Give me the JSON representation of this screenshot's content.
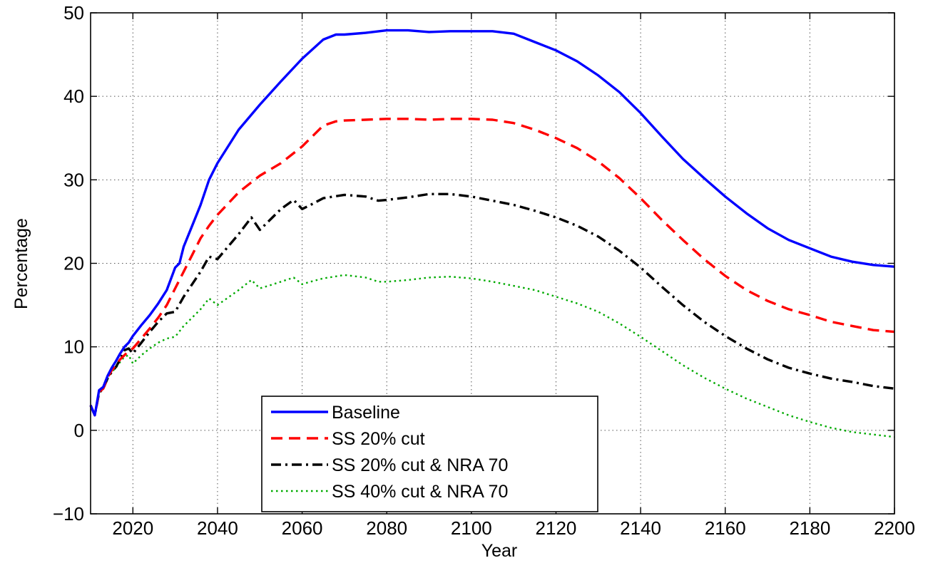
{
  "chart_data": {
    "type": "line",
    "title": "",
    "xlabel": "Year",
    "ylabel": "Percentage",
    "xlim": [
      2010,
      2200
    ],
    "ylim": [
      -10,
      50
    ],
    "xticks": [
      2020,
      2040,
      2060,
      2080,
      2100,
      2120,
      2140,
      2160,
      2180,
      2200
    ],
    "xtick_labels": [
      "2020",
      "2040",
      "2060",
      "2080",
      "2100",
      "2120",
      "2140",
      "2160",
      "2180",
      "2200"
    ],
    "yticks": [
      -10,
      0,
      10,
      20,
      30,
      40,
      50
    ],
    "ytick_labels": [
      "−10",
      "0",
      "10",
      "20",
      "30",
      "40",
      "50"
    ],
    "grid": true,
    "legend_position": "bottom-center",
    "series": [
      {
        "name": "Baseline",
        "color": "#0000ff",
        "dash": "solid",
        "points": [
          [
            2010,
            3
          ],
          [
            2011,
            1.8
          ],
          [
            2012,
            4.8
          ],
          [
            2013,
            5.2
          ],
          [
            2014,
            6.5
          ],
          [
            2015,
            7.5
          ],
          [
            2016,
            8.3
          ],
          [
            2017,
            9.2
          ],
          [
            2018,
            10
          ],
          [
            2019,
            10.5
          ],
          [
            2020,
            11.3
          ],
          [
            2022,
            12.6
          ],
          [
            2024,
            13.8
          ],
          [
            2026,
            15.2
          ],
          [
            2028,
            16.8
          ],
          [
            2030,
            19.5
          ],
          [
            2031,
            20
          ],
          [
            2032,
            22
          ],
          [
            2034,
            24.5
          ],
          [
            2036,
            27
          ],
          [
            2038,
            30
          ],
          [
            2040,
            32
          ],
          [
            2045,
            36
          ],
          [
            2050,
            39
          ],
          [
            2055,
            41.8
          ],
          [
            2060,
            44.5
          ],
          [
            2065,
            46.8
          ],
          [
            2068,
            47.4
          ],
          [
            2070,
            47.4
          ],
          [
            2075,
            47.6
          ],
          [
            2080,
            47.9
          ],
          [
            2085,
            47.9
          ],
          [
            2090,
            47.7
          ],
          [
            2095,
            47.8
          ],
          [
            2100,
            47.8
          ],
          [
            2105,
            47.8
          ],
          [
            2110,
            47.5
          ],
          [
            2115,
            46.5
          ],
          [
            2120,
            45.5
          ],
          [
            2125,
            44.2
          ],
          [
            2130,
            42.5
          ],
          [
            2135,
            40.5
          ],
          [
            2140,
            38
          ],
          [
            2145,
            35.2
          ],
          [
            2150,
            32.5
          ],
          [
            2155,
            30.2
          ],
          [
            2160,
            28
          ],
          [
            2165,
            26
          ],
          [
            2170,
            24.2
          ],
          [
            2175,
            22.8
          ],
          [
            2180,
            21.8
          ],
          [
            2185,
            20.8
          ],
          [
            2190,
            20.2
          ],
          [
            2195,
            19.8
          ],
          [
            2200,
            19.6
          ]
        ]
      },
      {
        "name": "SS 20% cut",
        "color": "#ff0000",
        "dash": "dashed",
        "points": [
          [
            2010,
            3
          ],
          [
            2011,
            1.8
          ],
          [
            2012,
            4.6
          ],
          [
            2013,
            5
          ],
          [
            2014,
            6.3
          ],
          [
            2015,
            7.2
          ],
          [
            2016,
            7.8
          ],
          [
            2017,
            8.5
          ],
          [
            2018,
            9
          ],
          [
            2019,
            9.5
          ],
          [
            2020,
            9.8
          ],
          [
            2022,
            11
          ],
          [
            2024,
            12.2
          ],
          [
            2026,
            13.5
          ],
          [
            2028,
            15
          ],
          [
            2030,
            17
          ],
          [
            2032,
            19
          ],
          [
            2034,
            21
          ],
          [
            2036,
            23
          ],
          [
            2038,
            24.5
          ],
          [
            2040,
            25.8
          ],
          [
            2045,
            28.5
          ],
          [
            2050,
            30.5
          ],
          [
            2055,
            32
          ],
          [
            2060,
            34
          ],
          [
            2065,
            36.5
          ],
          [
            2068,
            37
          ],
          [
            2070,
            37.1
          ],
          [
            2075,
            37.2
          ],
          [
            2080,
            37.3
          ],
          [
            2085,
            37.3
          ],
          [
            2090,
            37.2
          ],
          [
            2095,
            37.3
          ],
          [
            2100,
            37.3
          ],
          [
            2105,
            37.2
          ],
          [
            2110,
            36.8
          ],
          [
            2115,
            36
          ],
          [
            2120,
            35
          ],
          [
            2125,
            33.8
          ],
          [
            2130,
            32.2
          ],
          [
            2135,
            30.2
          ],
          [
            2140,
            27.8
          ],
          [
            2145,
            25.2
          ],
          [
            2150,
            22.8
          ],
          [
            2155,
            20.5
          ],
          [
            2160,
            18.5
          ],
          [
            2165,
            16.8
          ],
          [
            2170,
            15.5
          ],
          [
            2175,
            14.5
          ],
          [
            2180,
            13.8
          ],
          [
            2185,
            13
          ],
          [
            2190,
            12.5
          ],
          [
            2195,
            12
          ],
          [
            2200,
            11.8
          ]
        ]
      },
      {
        "name": "SS 20% cut & NRA 70",
        "color": "#000000",
        "dash": "dashdot",
        "points": [
          [
            2010,
            3
          ],
          [
            2011,
            1.8
          ],
          [
            2012,
            4.5
          ],
          [
            2013,
            5
          ],
          [
            2014,
            6.2
          ],
          [
            2015,
            7
          ],
          [
            2016,
            7.6
          ],
          [
            2017,
            8.5
          ],
          [
            2018,
            9.6
          ],
          [
            2019,
            9.8
          ],
          [
            2020,
            9.2
          ],
          [
            2022,
            10.5
          ],
          [
            2024,
            11.8
          ],
          [
            2026,
            13
          ],
          [
            2028,
            14
          ],
          [
            2030,
            14.2
          ],
          [
            2032,
            16
          ],
          [
            2034,
            17.5
          ],
          [
            2036,
            19
          ],
          [
            2038,
            20.8
          ],
          [
            2040,
            20.5
          ],
          [
            2045,
            23.5
          ],
          [
            2048,
            25.5
          ],
          [
            2050,
            24
          ],
          [
            2052,
            25
          ],
          [
            2055,
            26.5
          ],
          [
            2058,
            27.6
          ],
          [
            2060,
            26.5
          ],
          [
            2062,
            27
          ],
          [
            2065,
            27.8
          ],
          [
            2070,
            28.2
          ],
          [
            2075,
            28
          ],
          [
            2078,
            27.5
          ],
          [
            2080,
            27.6
          ],
          [
            2085,
            27.9
          ],
          [
            2090,
            28.3
          ],
          [
            2095,
            28.3
          ],
          [
            2100,
            28
          ],
          [
            2105,
            27.5
          ],
          [
            2110,
            27
          ],
          [
            2115,
            26.3
          ],
          [
            2120,
            25.5
          ],
          [
            2125,
            24.5
          ],
          [
            2130,
            23.2
          ],
          [
            2135,
            21.5
          ],
          [
            2140,
            19.5
          ],
          [
            2145,
            17.2
          ],
          [
            2150,
            15
          ],
          [
            2155,
            13
          ],
          [
            2160,
            11.3
          ],
          [
            2165,
            9.8
          ],
          [
            2170,
            8.5
          ],
          [
            2175,
            7.5
          ],
          [
            2180,
            6.8
          ],
          [
            2185,
            6.2
          ],
          [
            2190,
            5.8
          ],
          [
            2195,
            5.3
          ],
          [
            2200,
            5
          ]
        ]
      },
      {
        "name": "SS 40% cut & NRA 70",
        "color": "#00aa00",
        "dash": "dotted",
        "points": [
          [
            2010,
            3
          ],
          [
            2011,
            1.8
          ],
          [
            2012,
            4.4
          ],
          [
            2013,
            5
          ],
          [
            2014,
            6.2
          ],
          [
            2015,
            7
          ],
          [
            2016,
            7.5
          ],
          [
            2017,
            8.2
          ],
          [
            2018,
            8.8
          ],
          [
            2019,
            9
          ],
          [
            2020,
            8
          ],
          [
            2022,
            9
          ],
          [
            2024,
            9.8
          ],
          [
            2026,
            10.5
          ],
          [
            2028,
            11
          ],
          [
            2030,
            11.2
          ],
          [
            2032,
            12.5
          ],
          [
            2034,
            13.5
          ],
          [
            2036,
            14.5
          ],
          [
            2038,
            15.8
          ],
          [
            2040,
            15
          ],
          [
            2045,
            16.8
          ],
          [
            2048,
            18
          ],
          [
            2050,
            17
          ],
          [
            2052,
            17.3
          ],
          [
            2055,
            17.8
          ],
          [
            2058,
            18.3
          ],
          [
            2060,
            17.5
          ],
          [
            2062,
            17.8
          ],
          [
            2065,
            18.2
          ],
          [
            2070,
            18.6
          ],
          [
            2075,
            18.3
          ],
          [
            2078,
            17.8
          ],
          [
            2080,
            17.8
          ],
          [
            2085,
            18
          ],
          [
            2090,
            18.3
          ],
          [
            2095,
            18.4
          ],
          [
            2100,
            18.2
          ],
          [
            2105,
            17.8
          ],
          [
            2110,
            17.3
          ],
          [
            2115,
            16.8
          ],
          [
            2120,
            16
          ],
          [
            2125,
            15.2
          ],
          [
            2130,
            14.2
          ],
          [
            2135,
            12.8
          ],
          [
            2140,
            11.2
          ],
          [
            2145,
            9.5
          ],
          [
            2150,
            7.8
          ],
          [
            2155,
            6.3
          ],
          [
            2160,
            5
          ],
          [
            2165,
            3.8
          ],
          [
            2170,
            2.8
          ],
          [
            2175,
            1.8
          ],
          [
            2180,
            1
          ],
          [
            2185,
            0.3
          ],
          [
            2190,
            -0.2
          ],
          [
            2195,
            -0.5
          ],
          [
            2200,
            -0.8
          ]
        ]
      }
    ]
  }
}
